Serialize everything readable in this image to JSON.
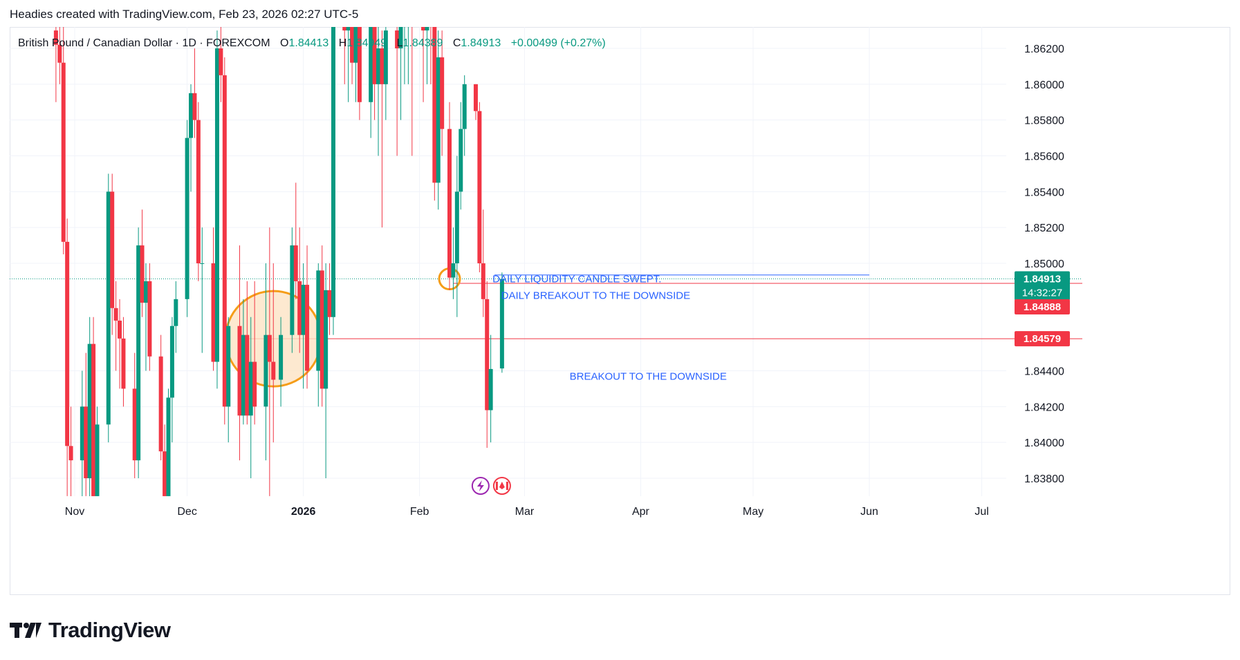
{
  "header": {
    "attribution": "Headies created with TradingView.com, Feb 23, 2026 02:27 UTC-5"
  },
  "legend": {
    "symbol": "British Pound / Canadian Dollar · 1D · FOREXCOM",
    "o_label": "O",
    "o_value": "1.84413",
    "h_label": "H",
    "h_value": "1.84949",
    "l_label": "L",
    "l_value": "1.84389",
    "c_label": "C",
    "c_value": "1.84913",
    "change": "+0.00499 (+0.27%)"
  },
  "footer": {
    "brand": "TradingView"
  },
  "colors": {
    "up": "#089981",
    "down": "#f23645",
    "annotation_text": "#2962ff",
    "circle_stroke": "#f59d18",
    "circle_fill": "#fde3c4",
    "level_line": "#f23645",
    "grid": "#f0f3fa"
  },
  "icons": [
    "lightning-icon",
    "canada-flag-icon",
    "tradingview-logo-icon"
  ],
  "chart_data": {
    "type": "candlestick",
    "title": "",
    "price_axis": {
      "ticks": [
        "1.86200",
        "1.86000",
        "1.85800",
        "1.85600",
        "1.85400",
        "1.85200",
        "1.85000",
        "1.84400",
        "1.84200",
        "1.84000",
        "1.83800"
      ],
      "range": [
        1.8362,
        1.8645
      ]
    },
    "time_axis": {
      "ticks": [
        {
          "label": "Nov",
          "date": "2025-11-01",
          "bold": false
        },
        {
          "label": "Dec",
          "date": "2025-12-01",
          "bold": false
        },
        {
          "label": "2026",
          "date": "2026-01-01",
          "bold": true
        },
        {
          "label": "Feb",
          "date": "2026-02-01",
          "bold": false
        },
        {
          "label": "Mar",
          "date": "2026-03-01",
          "bold": false
        },
        {
          "label": "Apr",
          "date": "2026-04-01",
          "bold": false
        },
        {
          "label": "May",
          "date": "2026-05-01",
          "bold": false
        },
        {
          "label": "Jun",
          "date": "2026-06-01",
          "bold": false
        },
        {
          "label": "Jul",
          "date": "2026-07-01",
          "bold": false
        }
      ]
    },
    "price_labels": [
      {
        "value": "1.84913",
        "sub": "14:32:27",
        "color": "#089981"
      },
      {
        "value": "1.84888",
        "color": "#f23645"
      },
      {
        "value": "1.84579",
        "color": "#f23645"
      }
    ],
    "horizontal_levels": [
      {
        "price": 1.84888,
        "from": "2026-02-10",
        "color": "#f23645"
      },
      {
        "price": 1.84579,
        "from": "2025-12-15",
        "color": "#f23645"
      },
      {
        "price": 1.84935,
        "from": "2026-02-21",
        "to": "2026-06-01",
        "color": "#2962ff"
      }
    ],
    "annotations": [
      {
        "text": "DAILY LIQUIDITY CANDLE SWEPT.",
        "date": "2026-03-15",
        "price": 1.84913
      },
      {
        "text": "DAILY BREAKOUT TO THE DOWNSIDE",
        "date": "2026-03-20",
        "price": 1.8482
      },
      {
        "text": "BREAKOUT TO THE DOWNSIDE",
        "date": "2026-04-03",
        "price": 1.8437
      }
    ],
    "highlight_circles": [
      {
        "date": "2025-12-24",
        "price": 1.84579,
        "size": "large"
      },
      {
        "date": "2026-02-09",
        "price": 1.84913,
        "size": "small"
      }
    ],
    "event_icons_date": "2026-02-23",
    "candles": [
      [
        "2025-10-27",
        1.863,
        1.865,
        1.859,
        1.8622
      ],
      [
        "2025-10-28",
        1.8622,
        1.8645,
        1.86,
        1.8612
      ],
      [
        "2025-10-29",
        1.8612,
        1.864,
        1.8505,
        1.8512
      ],
      [
        "2025-10-30",
        1.8512,
        1.8525,
        1.837,
        1.8398
      ],
      [
        "2025-10-31",
        1.8398,
        1.842,
        1.8362,
        1.839
      ],
      [
        "2025-11-03",
        1.839,
        1.844,
        1.8362,
        1.842
      ],
      [
        "2025-11-04",
        1.842,
        1.845,
        1.837,
        1.838
      ],
      [
        "2025-11-05",
        1.838,
        1.847,
        1.8362,
        1.8455
      ],
      [
        "2025-11-06",
        1.8455,
        1.847,
        1.8362,
        1.837
      ],
      [
        "2025-11-07",
        1.837,
        1.842,
        1.8362,
        1.841
      ],
      [
        "2025-11-10",
        1.841,
        1.855,
        1.84,
        1.854
      ],
      [
        "2025-11-11",
        1.854,
        1.855,
        1.846,
        1.8475
      ],
      [
        "2025-11-12",
        1.8475,
        1.849,
        1.844,
        1.8468
      ],
      [
        "2025-11-13",
        1.8468,
        1.848,
        1.843,
        1.8458
      ],
      [
        "2025-11-14",
        1.8458,
        1.847,
        1.842,
        1.843
      ],
      [
        "2025-11-17",
        1.843,
        1.845,
        1.838,
        1.839
      ],
      [
        "2025-11-18",
        1.839,
        1.852,
        1.838,
        1.851
      ],
      [
        "2025-11-19",
        1.851,
        1.853,
        1.847,
        1.8478
      ],
      [
        "2025-11-20",
        1.8478,
        1.85,
        1.844,
        1.849
      ],
      [
        "2025-11-21",
        1.849,
        1.85,
        1.844,
        1.8448
      ],
      [
        "2025-11-24",
        1.8448,
        1.846,
        1.839,
        1.8395
      ],
      [
        "2025-11-25",
        1.8395,
        1.841,
        1.8362,
        1.837
      ],
      [
        "2025-11-26",
        1.837,
        1.843,
        1.8362,
        1.8425
      ],
      [
        "2025-11-27",
        1.8425,
        1.847,
        1.84,
        1.8465
      ],
      [
        "2025-11-28",
        1.8465,
        1.849,
        1.845,
        1.848
      ],
      [
        "2025-12-01",
        1.848,
        1.858,
        1.847,
        1.857
      ],
      [
        "2025-12-02",
        1.857,
        1.86,
        1.854,
        1.8595
      ],
      [
        "2025-12-03",
        1.8595,
        1.862,
        1.857,
        1.858
      ],
      [
        "2025-12-04",
        1.858,
        1.859,
        1.849,
        1.85
      ],
      [
        "2025-12-05",
        1.85,
        1.852,
        1.845,
        1.85
      ],
      [
        "2025-12-08",
        1.85,
        1.852,
        1.844,
        1.8445
      ],
      [
        "2025-12-09",
        1.8445,
        1.863,
        1.843,
        1.862
      ],
      [
        "2025-12-10",
        1.862,
        1.864,
        1.859,
        1.8605
      ],
      [
        "2025-12-11",
        1.8605,
        1.8615,
        1.841,
        1.842
      ],
      [
        "2025-12-12",
        1.842,
        1.847,
        1.84,
        1.8465
      ],
      [
        "2025-12-15",
        1.8465,
        1.851,
        1.839,
        1.8415
      ],
      [
        "2025-12-16",
        1.8415,
        1.848,
        1.841,
        1.846
      ],
      [
        "2025-12-17",
        1.846,
        1.849,
        1.841,
        1.8415
      ],
      [
        "2025-12-18",
        1.8415,
        1.847,
        1.838,
        1.8445
      ],
      [
        "2025-12-19",
        1.8445,
        1.849,
        1.841,
        1.842
      ],
      [
        "2025-12-22",
        1.842,
        1.85,
        1.839,
        1.846
      ],
      [
        "2025-12-23",
        1.846,
        1.852,
        1.837,
        1.8445
      ],
      [
        "2025-12-24",
        1.8445,
        1.85,
        1.84,
        1.8435
      ],
      [
        "2025-12-26",
        1.8435,
        1.847,
        1.842,
        1.846
      ],
      [
        "2025-12-29",
        1.846,
        1.852,
        1.845,
        1.851
      ],
      [
        "2025-12-30",
        1.851,
        1.8545,
        1.848,
        1.849
      ],
      [
        "2025-12-31",
        1.849,
        1.852,
        1.845,
        1.846
      ],
      [
        "2026-01-01",
        1.846,
        1.85,
        1.843,
        1.8488
      ],
      [
        "2026-01-02",
        1.8488,
        1.851,
        1.843,
        1.844
      ],
      [
        "2026-01-05",
        1.844,
        1.85,
        1.842,
        1.8496
      ],
      [
        "2026-01-06",
        1.8496,
        1.851,
        1.842,
        1.843
      ],
      [
        "2026-01-07",
        1.843,
        1.85,
        1.838,
        1.8485
      ],
      [
        "2026-01-08",
        1.8485,
        1.85,
        1.846,
        1.847
      ],
      [
        "2026-01-09",
        1.847,
        1.8645,
        1.846,
        1.8638
      ],
      [
        "2026-01-12",
        1.8638,
        1.865,
        1.86,
        1.863
      ],
      [
        "2026-01-13",
        1.863,
        1.865,
        1.859,
        1.8645
      ],
      [
        "2026-01-14",
        1.8645,
        1.865,
        1.86,
        1.8612
      ],
      [
        "2026-01-15",
        1.8612,
        1.865,
        1.859,
        1.864
      ],
      [
        "2026-01-16",
        1.864,
        1.865,
        1.858,
        1.859
      ],
      [
        "2026-01-19",
        1.859,
        1.865,
        1.857,
        1.864
      ],
      [
        "2026-01-20",
        1.864,
        1.865,
        1.858,
        1.86
      ],
      [
        "2026-01-21",
        1.86,
        1.864,
        1.856,
        1.862
      ],
      [
        "2026-01-22",
        1.862,
        1.863,
        1.852,
        1.86
      ],
      [
        "2026-01-23",
        1.86,
        1.864,
        1.858,
        1.863
      ],
      [
        "2026-01-26",
        1.863,
        1.8645,
        1.856,
        1.862
      ],
      [
        "2026-01-27",
        1.862,
        1.864,
        1.858,
        1.8635
      ],
      [
        "2026-01-28",
        1.8635,
        1.865,
        1.86,
        1.864
      ],
      [
        "2026-01-29",
        1.864,
        1.865,
        1.86,
        1.8645
      ],
      [
        "2026-01-30",
        1.8645,
        1.865,
        1.856,
        1.864
      ],
      [
        "2026-02-02",
        1.864,
        1.865,
        1.859,
        1.863
      ],
      [
        "2026-02-03",
        1.863,
        1.865,
        1.86,
        1.8645
      ],
      [
        "2026-02-04",
        1.8645,
        1.865,
        1.86,
        1.8635
      ],
      [
        "2026-02-05",
        1.8635,
        1.865,
        1.8535,
        1.8545
      ],
      [
        "2026-02-06",
        1.8545,
        1.863,
        1.853,
        1.8615
      ],
      [
        "2026-02-07",
        1.8615,
        1.863,
        1.856,
        1.8575
      ],
      [
        "2026-02-09",
        1.8575,
        1.859,
        1.8485,
        1.8492
      ],
      [
        "2026-02-10",
        1.8492,
        1.852,
        1.848,
        1.85
      ],
      [
        "2026-02-11",
        1.85,
        1.856,
        1.847,
        1.854
      ],
      [
        "2026-02-12",
        1.854,
        1.859,
        1.853,
        1.8575
      ],
      [
        "2026-02-13",
        1.8575,
        1.8605,
        1.856,
        1.86
      ],
      [
        "2026-02-16",
        1.86,
        1.86,
        1.858,
        1.8585
      ],
      [
        "2026-02-17",
        1.8585,
        1.859,
        1.8495,
        1.85
      ],
      [
        "2026-02-18",
        1.85,
        1.853,
        1.847,
        1.848
      ],
      [
        "2026-02-19",
        1.848,
        1.849,
        1.8397,
        1.8418
      ],
      [
        "2026-02-20",
        1.8418,
        1.846,
        1.84,
        1.8441
      ],
      [
        "2026-02-23",
        1.84413,
        1.84949,
        1.84389,
        1.84913
      ]
    ]
  }
}
